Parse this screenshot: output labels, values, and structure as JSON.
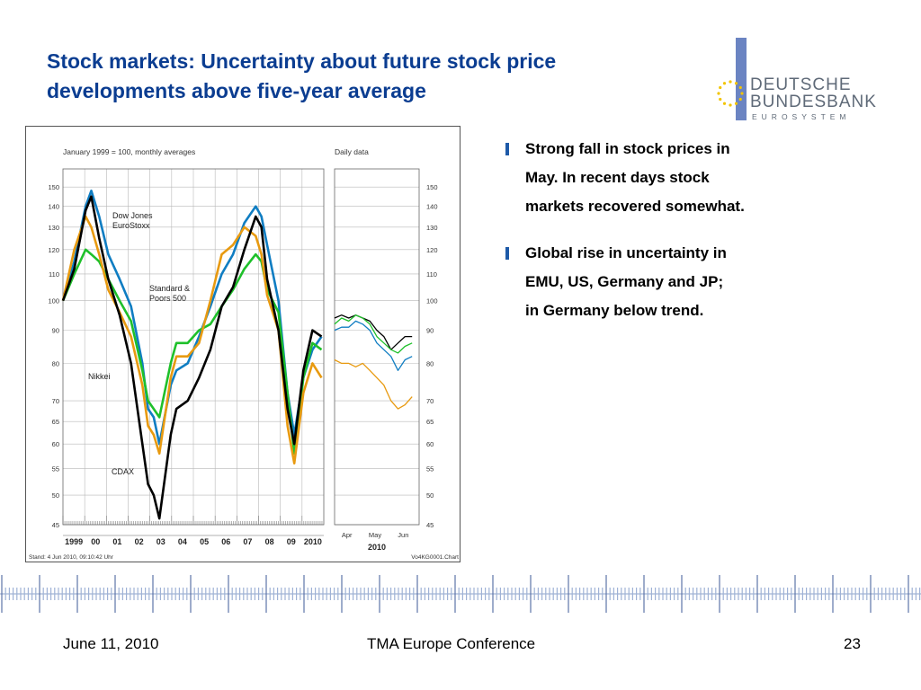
{
  "slide": {
    "title_lines": [
      "Stock markets: Uncertainty about future stock price",
      "developments above five-year average"
    ],
    "logo": {
      "name_line1": "DEUTSCHE",
      "name_line2": "BUNDESBANK",
      "subline": "EUROSYSTEM",
      "bar_color": "#6b84c2",
      "text_color": "#5f6a78",
      "star_color": "#f2c400"
    },
    "bullets": [
      {
        "lines": [
          "Strong fall in stock prices in",
          "May. In recent days stock",
          "markets recovered somewhat."
        ]
      },
      {
        "lines": [
          "Global rise in uncertainty in",
          "EMU, US, Germany and JP;",
          "in Germany below trend."
        ]
      }
    ],
    "footer": {
      "date": "June 11, 2010",
      "conference": "TMA Europe Conference",
      "page": "23"
    },
    "accent_color": "#1e5aa8"
  },
  "chart_data": {
    "type": "line",
    "scale": "log",
    "grid": true,
    "ylim": [
      45,
      160
    ],
    "y_ticks": [
      45,
      50,
      55,
      60,
      65,
      70,
      80,
      90,
      100,
      110,
      120,
      130,
      140,
      150
    ],
    "panels": [
      {
        "subtitle": "January 1999 = 100, monthly averages",
        "x_labels": [
          "1999",
          "00",
          "01",
          "02",
          "03",
          "04",
          "05",
          "06",
          "07",
          "08",
          "09",
          "2010"
        ],
        "x_range": [
          1999.0,
          2010.5
        ],
        "x": [
          1999.0,
          1999.5,
          2000.0,
          2000.25,
          2000.6,
          2001.0,
          2001.5,
          2002.0,
          2002.5,
          2002.75,
          2003.0,
          2003.25,
          2003.75,
          2004.0,
          2004.5,
          2005.0,
          2005.5,
          2006.0,
          2006.5,
          2007.0,
          2007.5,
          2007.75,
          2008.0,
          2008.5,
          2008.9,
          2009.2,
          2009.6,
          2010.0,
          2010.4
        ],
        "series": [
          {
            "name": "Dow Jones EuroStoxx",
            "color": "#0f7dc2",
            "values": [
              100,
              115,
              140,
              148,
              135,
              118,
              108,
              98,
              80,
              68,
              66,
              60,
              74,
              78,
              80,
              88,
              98,
              110,
              118,
              132,
              140,
              135,
              122,
              100,
              72,
              62,
              76,
              84,
              88
            ]
          },
          {
            "name": "Standard & Poors 500",
            "color": "#1ec02a",
            "values": [
              100,
              110,
              120,
              118,
              115,
              108,
              100,
              93,
              78,
              70,
              68,
              66,
              80,
              86,
              86,
              90,
              92,
              98,
              104,
              112,
              118,
              115,
              104,
              96,
              72,
              58,
              76,
              86,
              84
            ]
          },
          {
            "name": "Nikkei",
            "color": "#e89a10",
            "values": [
              100,
              120,
              135,
              130,
              118,
              104,
              96,
              88,
              74,
              64,
              62,
              58,
              76,
              82,
              82,
              86,
              100,
              118,
              122,
              130,
              126,
              118,
              102,
              90,
              64,
              56,
              72,
              80,
              76
            ]
          },
          {
            "name": "CDAX",
            "color": "#000000",
            "values": [
              100,
              112,
              138,
              145,
              125,
              108,
              95,
              80,
              60,
              52,
              50,
              46,
              62,
              68,
              70,
              76,
              84,
              98,
              105,
              120,
              135,
              130,
              108,
              90,
              68,
              60,
              78,
              90,
              88
            ]
          }
        ]
      },
      {
        "subtitle": "Daily data",
        "x_labels": [
          "Apr",
          "May",
          "Jun"
        ],
        "year_label": "2010",
        "x_range": [
          0,
          72
        ],
        "x": [
          0,
          6,
          12,
          18,
          24,
          30,
          36,
          42,
          48,
          54,
          60,
          66
        ],
        "series": [
          {
            "name": "CDAX",
            "color": "#000000",
            "values": [
              94,
              95,
              94,
              95,
              94,
              93,
              90,
              88,
              84,
              86,
              88,
              88
            ]
          },
          {
            "name": "Standard & Poors 500",
            "color": "#1ec02a",
            "values": [
              92,
              94,
              93,
              95,
              94,
              92,
              88,
              86,
              84,
              83,
              85,
              86
            ]
          },
          {
            "name": "Dow Jones EuroStoxx",
            "color": "#0f7dc2",
            "values": [
              90,
              91,
              91,
              93,
              92,
              90,
              86,
              84,
              82,
              78,
              81,
              82
            ]
          },
          {
            "name": "Nikkei",
            "color": "#e89a10",
            "values": [
              81,
              80,
              80,
              79,
              80,
              78,
              76,
              74,
              70,
              68,
              69,
              71
            ]
          }
        ]
      }
    ],
    "annotations": [
      "Dow Jones EuroStoxx",
      "Standard & Poors 500",
      "Nikkei",
      "CDAX"
    ],
    "source_note": "Stand: 4 Jun 2010, 09:10:42 Uhr",
    "chart_id": "Vo4KG0001.Chart"
  }
}
